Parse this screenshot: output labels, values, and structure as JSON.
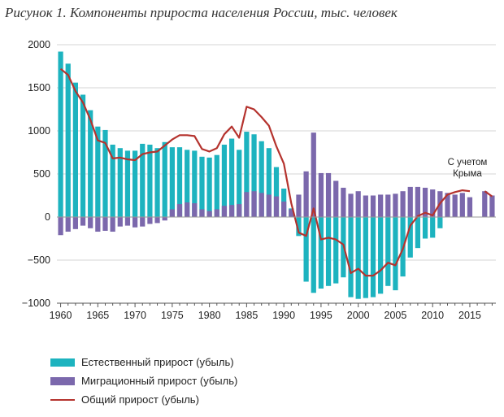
{
  "chart_data": {
    "type": "bar",
    "title": "Рисунок 1. Компоненты прироста населения России, тыс. человек",
    "xlabel": "",
    "ylabel": "",
    "ylim": [
      -1000,
      2000
    ],
    "yticks": [
      2000,
      1500,
      1000,
      500,
      0,
      -500,
      -1000
    ],
    "yticklabels": [
      "2000",
      "1500",
      "1000",
      "500",
      "0",
      "−500",
      "−1000"
    ],
    "xticks": [
      1960,
      1965,
      1970,
      1975,
      1980,
      1985,
      1990,
      1995,
      2000,
      2005,
      2010,
      2015
    ],
    "xticklabels": [
      "1960",
      "1965",
      "1970",
      "1975",
      "1980",
      "1985",
      "1990",
      "1995",
      "2000",
      "2005",
      "2010",
      "2015"
    ],
    "grid": true,
    "legend_position": "bottom-left",
    "annotation": [
      "С учетом",
      "Крыма"
    ],
    "colors": {
      "natural": "#1db3bf",
      "migration": "#7b68ac",
      "total": "#b5332e"
    },
    "x": [
      1960,
      1961,
      1962,
      1963,
      1964,
      1965,
      1966,
      1967,
      1968,
      1969,
      1970,
      1971,
      1972,
      1973,
      1974,
      1975,
      1976,
      1977,
      1978,
      1979,
      1980,
      1981,
      1982,
      1983,
      1984,
      1985,
      1986,
      1987,
      1988,
      1989,
      1990,
      1991,
      1992,
      1993,
      1994,
      1995,
      1996,
      1997,
      1998,
      1999,
      2000,
      2001,
      2002,
      2003,
      2004,
      2005,
      2006,
      2007,
      2008,
      2009,
      2010,
      2011,
      2012,
      2013,
      2014,
      2015,
      2016,
      2017,
      2018
    ],
    "series": [
      {
        "name": "Естественный прирост (убыль)",
        "type": "bar",
        "values": [
          1920,
          1780,
          1560,
          1420,
          1240,
          1050,
          1010,
          840,
          800,
          770,
          770,
          850,
          840,
          800,
          870,
          810,
          810,
          780,
          770,
          700,
          690,
          720,
          840,
          910,
          780,
          990,
          960,
          880,
          800,
          580,
          330,
          100,
          -220,
          -750,
          -880,
          -830,
          -800,
          -770,
          -700,
          -930,
          -950,
          -940,
          -930,
          -890,
          -800,
          -850,
          -690,
          -470,
          -360,
          -250,
          -240,
          -130,
          0,
          0,
          0,
          0,
          0,
          0,
          0
        ]
      },
      {
        "name": "Миграционный прирост (убыль)",
        "type": "bar",
        "values": [
          -210,
          -170,
          -140,
          -100,
          -130,
          -170,
          -160,
          -170,
          -110,
          -100,
          -120,
          -110,
          -80,
          -70,
          -40,
          90,
          150,
          170,
          160,
          90,
          70,
          90,
          130,
          140,
          150,
          290,
          300,
          280,
          260,
          240,
          180,
          90,
          260,
          530,
          980,
          510,
          510,
          420,
          340,
          270,
          300,
          250,
          250,
          260,
          260,
          270,
          300,
          350,
          350,
          340,
          320,
          300,
          280,
          260,
          280,
          230,
          0,
          300,
          250
        ]
      },
      {
        "name": "Общий прирост (убыль)",
        "type": "line",
        "values": [
          1720,
          1650,
          1460,
          1330,
          1130,
          890,
          860,
          680,
          690,
          670,
          660,
          730,
          750,
          760,
          830,
          900,
          950,
          950,
          940,
          790,
          760,
          800,
          960,
          1050,
          920,
          1280,
          1250,
          1160,
          1060,
          820,
          620,
          160,
          -180,
          -220,
          100,
          -260,
          -240,
          -260,
          -320,
          -650,
          -600,
          -680,
          -680,
          -620,
          -530,
          -560,
          -370,
          -100,
          10,
          50,
          20,
          160,
          260,
          290,
          310,
          300,
          null,
          300,
          240
        ]
      }
    ]
  }
}
